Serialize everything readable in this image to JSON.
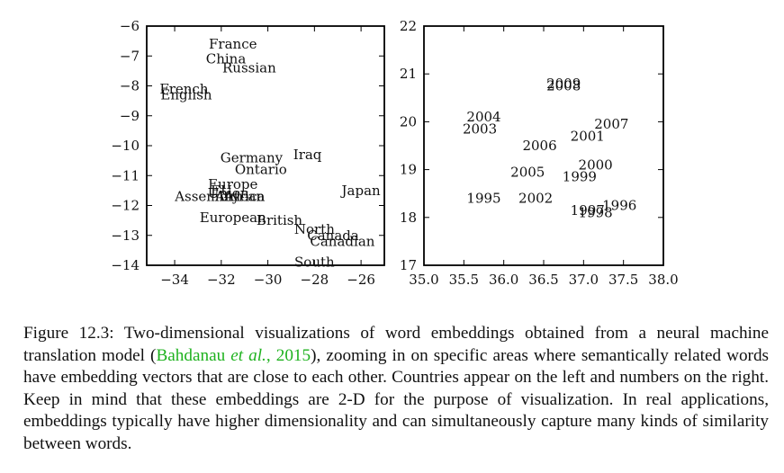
{
  "chart_data": [
    {
      "type": "scatter",
      "marker": "text",
      "title": "",
      "xlabel": "",
      "ylabel": "",
      "xlim": [
        -35.2,
        -25.0
      ],
      "ylim": [
        -14,
        -6
      ],
      "xticks": [
        -34,
        -32,
        -30,
        -28,
        -26
      ],
      "yticks": [
        -6,
        -7,
        -8,
        -9,
        -10,
        -11,
        -12,
        -13,
        -14
      ],
      "xtick_labels": [
        "−34",
        "−32",
        "−30",
        "−28",
        "−26"
      ],
      "ytick_labels": [
        "−6",
        "−7",
        "−8",
        "−9",
        "−10",
        "−11",
        "−12",
        "−13",
        "−14"
      ],
      "grid": false,
      "points": [
        {
          "label": "France",
          "x": -31.5,
          "y": -6.6
        },
        {
          "label": "China",
          "x": -31.8,
          "y": -7.1
        },
        {
          "label": "Russian",
          "x": -30.8,
          "y": -7.4
        },
        {
          "label": "French",
          "x": -33.6,
          "y": -8.1
        },
        {
          "label": "English",
          "x": -33.5,
          "y": -8.3
        },
        {
          "label": "Germany",
          "x": -30.7,
          "y": -10.4
        },
        {
          "label": "Iraq",
          "x": -28.3,
          "y": -10.3
        },
        {
          "label": "Ontario",
          "x": -30.3,
          "y": -10.8
        },
        {
          "label": "Europe",
          "x": -31.5,
          "y": -11.3
        },
        {
          "label": "EU",
          "x": -32.0,
          "y": -11.5
        },
        {
          "label": "Union",
          "x": -31.7,
          "y": -11.6
        },
        {
          "label": "Africa",
          "x": -31.0,
          "y": -11.7
        },
        {
          "label": "African",
          "x": -31.2,
          "y": -11.7
        },
        {
          "label": "Assembly",
          "x": -32.6,
          "y": -11.7
        },
        {
          "label": "Japan",
          "x": -26.0,
          "y": -11.5
        },
        {
          "label": "European",
          "x": -31.5,
          "y": -12.4
        },
        {
          "label": "British",
          "x": -29.5,
          "y": -12.5
        },
        {
          "label": "North",
          "x": -28.0,
          "y": -12.8
        },
        {
          "label": "Canada",
          "x": -27.2,
          "y": -13.0
        },
        {
          "label": "Canadian",
          "x": -26.8,
          "y": -13.2
        },
        {
          "label": "South",
          "x": -28.0,
          "y": -13.9
        }
      ]
    },
    {
      "type": "scatter",
      "marker": "text",
      "title": "",
      "xlabel": "",
      "ylabel": "",
      "xlim": [
        35.0,
        38.0
      ],
      "ylim": [
        17,
        22
      ],
      "xticks": [
        35.0,
        35.5,
        36.0,
        36.5,
        37.0,
        37.5,
        38.0
      ],
      "yticks": [
        17,
        18,
        19,
        20,
        21,
        22
      ],
      "xtick_labels": [
        "35.0",
        "35.5",
        "36.0",
        "36.5",
        "37.0",
        "37.5",
        "38.0"
      ],
      "ytick_labels": [
        "17",
        "18",
        "19",
        "20",
        "21",
        "22"
      ],
      "grid": false,
      "points": [
        {
          "label": "2009",
          "x": 36.75,
          "y": 20.8
        },
        {
          "label": "2008",
          "x": 36.75,
          "y": 20.75
        },
        {
          "label": "2004",
          "x": 35.75,
          "y": 20.1
        },
        {
          "label": "2003",
          "x": 35.7,
          "y": 19.85
        },
        {
          "label": "2007",
          "x": 37.35,
          "y": 19.95
        },
        {
          "label": "2001",
          "x": 37.05,
          "y": 19.7
        },
        {
          "label": "2006",
          "x": 36.45,
          "y": 19.5
        },
        {
          "label": "2000",
          "x": 37.15,
          "y": 19.1
        },
        {
          "label": "2005",
          "x": 36.3,
          "y": 18.95
        },
        {
          "label": "1999",
          "x": 36.95,
          "y": 18.85
        },
        {
          "label": "1995",
          "x": 35.75,
          "y": 18.4
        },
        {
          "label": "2002",
          "x": 36.4,
          "y": 18.4
        },
        {
          "label": "1996",
          "x": 37.45,
          "y": 18.25
        },
        {
          "label": "1997",
          "x": 37.05,
          "y": 18.15
        },
        {
          "label": "1998",
          "x": 37.15,
          "y": 18.1
        }
      ]
    }
  ],
  "caption": {
    "prefix": "Figure 12.3: Two-dimensional visualizations of word embeddings obtained from a neural machine translation model (",
    "cite_author": "Bahdanau ",
    "cite_etal": "et al.",
    "cite_sep": ", ",
    "cite_year": "2015",
    "suffix": "), zooming in on specific areas where semantically related words have embedding vectors that are close to each other. Countries appear on the left and numbers on the right. Keep in mind that these embeddings are 2-D for the purpose of visualization. In real applications, embeddings typically have higher dimensionality and can simultaneously capture many kinds of similarity between words."
  }
}
